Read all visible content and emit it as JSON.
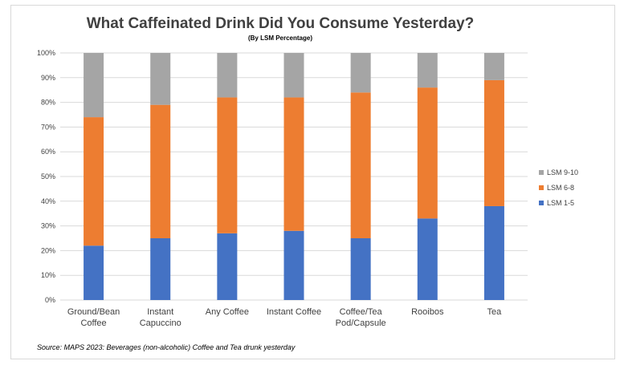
{
  "chart_data": {
    "type": "bar",
    "stacked": true,
    "title": "What Caffeinated Drink Did You Consume Yesterday?",
    "subtitle": "(By LSM Percentage)",
    "categories": [
      [
        "Ground/Bean",
        "Coffee"
      ],
      [
        "Instant",
        "Capuccino"
      ],
      [
        "Any Coffee"
      ],
      [
        "Instant Coffee"
      ],
      [
        "Coffee/Tea",
        "Pod/Capsule"
      ],
      [
        "Rooibos"
      ],
      [
        "Tea"
      ]
    ],
    "series": [
      {
        "name": "LSM 1-5",
        "color": "#4472c4",
        "values": [
          22,
          25,
          27,
          28,
          25,
          33,
          38
        ]
      },
      {
        "name": "LSM 6-8",
        "color": "#ed7d31",
        "values": [
          52,
          54,
          55,
          54,
          59,
          53,
          51
        ]
      },
      {
        "name": "LSM 9-10",
        "color": "#a5a5a5",
        "values": [
          26,
          21,
          18,
          18,
          16,
          14,
          11
        ]
      }
    ],
    "ylim": [
      0,
      100
    ],
    "yticks": [
      "0%",
      "10%",
      "20%",
      "30%",
      "40%",
      "50%",
      "60%",
      "70%",
      "80%",
      "90%",
      "100%"
    ],
    "grid": true,
    "legend_position": "right",
    "legend_order": [
      "LSM 9-10",
      "LSM 6-8",
      "LSM 1-5"
    ]
  },
  "source": "Source: MAPS 2023: Beverages (non-alcoholic) Coffee and Tea drunk yesterday"
}
